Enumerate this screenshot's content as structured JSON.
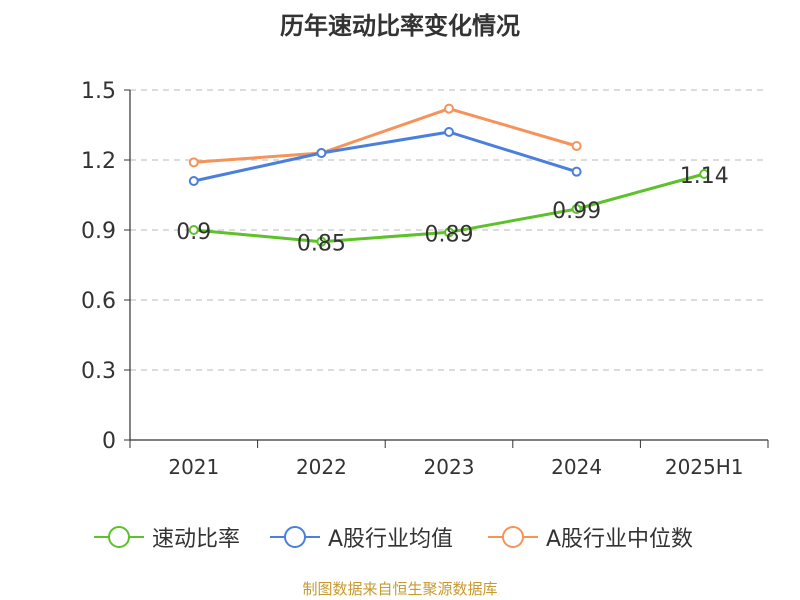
{
  "title": "历年速动比率变化情况",
  "footer": "制图数据来自恒生聚源数据库",
  "chart_data": {
    "type": "line",
    "categories": [
      "2021",
      "2022",
      "2023",
      "2024",
      "2025H1"
    ],
    "ylim": [
      0,
      1.5
    ],
    "yticks": [
      "0",
      "0.3",
      "0.6",
      "0.9",
      "1.2",
      "1.5"
    ],
    "grid": true,
    "legend_position": "bottom",
    "series": [
      {
        "name": "速动比率",
        "color": "#5cc12a",
        "values": [
          0.9,
          0.85,
          0.89,
          0.99,
          1.14
        ],
        "labels": [
          "0.9",
          "0.85",
          "0.89",
          "0.99",
          "1.14"
        ]
      },
      {
        "name": "A股行业均值",
        "color": "#4a7fdc",
        "values": [
          1.11,
          1.23,
          1.32,
          1.15,
          null
        ]
      },
      {
        "name": "A股行业中位数",
        "color": "#f5935a",
        "values": [
          1.19,
          1.23,
          1.42,
          1.26,
          null
        ]
      }
    ]
  }
}
